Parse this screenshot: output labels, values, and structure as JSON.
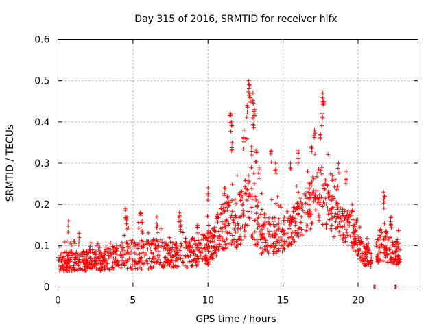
{
  "chart_data": {
    "type": "scatter",
    "title": "Day 315 of 2016, SRMTID for receiver hlfx",
    "xlabel": "GPS time / hours",
    "ylabel": "SRMTID / TECUs",
    "xlim": [
      0,
      24
    ],
    "ylim": [
      0,
      0.6
    ],
    "xticks": [
      0,
      5,
      10,
      15,
      20
    ],
    "yticks": [
      0,
      0.1,
      0.2,
      0.3,
      0.4,
      0.5,
      0.6
    ],
    "xtick_labels": [
      "0",
      "5",
      "10",
      "15",
      "20"
    ],
    "ytick_labels": [
      "0",
      "0.1",
      "0.2",
      "0.3",
      "0.4",
      "0.5",
      "0.6"
    ],
    "grid": true,
    "marker": "+",
    "color": "#ff0000",
    "series": [
      {
        "name": "SRMTID",
        "profile": [
          {
            "x": 0.0,
            "base": 0.055,
            "spread": 0.03
          },
          {
            "x": 1.0,
            "base": 0.06,
            "spread": 0.03
          },
          {
            "x": 2.0,
            "base": 0.06,
            "spread": 0.03
          },
          {
            "x": 3.0,
            "base": 0.06,
            "spread": 0.03
          },
          {
            "x": 4.0,
            "base": 0.07,
            "spread": 0.04
          },
          {
            "x": 5.0,
            "base": 0.075,
            "spread": 0.045
          },
          {
            "x": 6.0,
            "base": 0.075,
            "spread": 0.045
          },
          {
            "x": 7.0,
            "base": 0.075,
            "spread": 0.04
          },
          {
            "x": 8.0,
            "base": 0.075,
            "spread": 0.04
          },
          {
            "x": 9.0,
            "base": 0.08,
            "spread": 0.045
          },
          {
            "x": 10.0,
            "base": 0.09,
            "spread": 0.05
          },
          {
            "x": 11.0,
            "base": 0.14,
            "spread": 0.07
          },
          {
            "x": 12.0,
            "base": 0.15,
            "spread": 0.08
          },
          {
            "x": 12.7,
            "base": 0.2,
            "spread": 0.1
          },
          {
            "x": 13.5,
            "base": 0.13,
            "spread": 0.07
          },
          {
            "x": 14.0,
            "base": 0.12,
            "spread": 0.06
          },
          {
            "x": 15.0,
            "base": 0.12,
            "spread": 0.05
          },
          {
            "x": 16.0,
            "base": 0.16,
            "spread": 0.06
          },
          {
            "x": 17.0,
            "base": 0.2,
            "spread": 0.08
          },
          {
            "x": 17.5,
            "base": 0.22,
            "spread": 0.09
          },
          {
            "x": 18.5,
            "base": 0.16,
            "spread": 0.06
          },
          {
            "x": 19.5,
            "base": 0.13,
            "spread": 0.05
          },
          {
            "x": 20.5,
            "base": 0.07,
            "spread": 0.03
          },
          {
            "x": 21.0,
            "base": 0.06,
            "spread": 0.02
          },
          {
            "x": 21.5,
            "base": 0.1,
            "spread": 0.05
          },
          {
            "x": 22.5,
            "base": 0.08,
            "spread": 0.04
          },
          {
            "x": 22.8,
            "base": 0.08,
            "spread": 0.03
          }
        ],
        "gaps": [
          [
            20.9,
            21.2
          ]
        ],
        "outliers": [
          {
            "x": 0.7,
            "y": 0.16
          },
          {
            "x": 1.4,
            "y": 0.13
          },
          {
            "x": 4.5,
            "y": 0.19
          },
          {
            "x": 4.6,
            "y": 0.17
          },
          {
            "x": 5.5,
            "y": 0.18
          },
          {
            "x": 5.6,
            "y": 0.16
          },
          {
            "x": 6.6,
            "y": 0.17
          },
          {
            "x": 8.1,
            "y": 0.18
          },
          {
            "x": 8.2,
            "y": 0.16
          },
          {
            "x": 9.3,
            "y": 0.15
          },
          {
            "x": 10.0,
            "y": 0.24
          },
          {
            "x": 11.1,
            "y": 0.24
          },
          {
            "x": 11.3,
            "y": 0.22
          },
          {
            "x": 11.5,
            "y": 0.42
          },
          {
            "x": 11.55,
            "y": 0.4
          },
          {
            "x": 11.6,
            "y": 0.35
          },
          {
            "x": 12.4,
            "y": 0.38
          },
          {
            "x": 12.6,
            "y": 0.44
          },
          {
            "x": 12.7,
            "y": 0.5
          },
          {
            "x": 12.75,
            "y": 0.49
          },
          {
            "x": 12.8,
            "y": 0.47
          },
          {
            "x": 13.0,
            "y": 0.47
          },
          {
            "x": 13.1,
            "y": 0.43
          },
          {
            "x": 13.0,
            "y": 0.41
          },
          {
            "x": 12.9,
            "y": 0.34
          },
          {
            "x": 13.2,
            "y": 0.33
          },
          {
            "x": 13.4,
            "y": 0.29
          },
          {
            "x": 14.2,
            "y": 0.33
          },
          {
            "x": 14.5,
            "y": 0.3
          },
          {
            "x": 15.5,
            "y": 0.3
          },
          {
            "x": 16.0,
            "y": 0.33
          },
          {
            "x": 16.9,
            "y": 0.34
          },
          {
            "x": 17.1,
            "y": 0.38
          },
          {
            "x": 17.5,
            "y": 0.37
          },
          {
            "x": 17.6,
            "y": 0.42
          },
          {
            "x": 17.65,
            "y": 0.47
          },
          {
            "x": 17.7,
            "y": 0.45
          },
          {
            "x": 18.3,
            "y": 0.27
          },
          {
            "x": 18.7,
            "y": 0.3
          },
          {
            "x": 19.2,
            "y": 0.28
          },
          {
            "x": 19.6,
            "y": 0.2
          },
          {
            "x": 21.7,
            "y": 0.23
          },
          {
            "x": 21.75,
            "y": 0.22
          },
          {
            "x": 22.2,
            "y": 0.17
          }
        ]
      }
    ]
  }
}
